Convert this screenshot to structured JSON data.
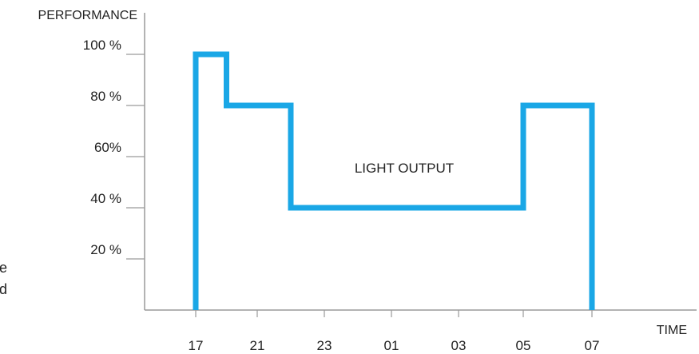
{
  "chart_data": {
    "type": "line",
    "ylabel": "PERFORMANCE",
    "xlabel": "TIME",
    "y_ticks": [
      {
        "value": 100,
        "label": "100 %"
      },
      {
        "value": 80,
        "label": "80 %"
      },
      {
        "value": 60,
        "label": "60%"
      },
      {
        "value": 40,
        "label": "40 %"
      },
      {
        "value": 20,
        "label": "20 %"
      }
    ],
    "x_ticks": [
      {
        "value": 17,
        "label": "17"
      },
      {
        "value": 21,
        "label": "21"
      },
      {
        "value": 23,
        "label": "23"
      },
      {
        "value": 25,
        "label": "01"
      },
      {
        "value": 27,
        "label": "03"
      },
      {
        "value": 29,
        "label": "05"
      },
      {
        "value": 31,
        "label": "07"
      }
    ],
    "ylim": [
      0,
      100
    ],
    "series": [
      {
        "name": "LIGHT OUTPUT",
        "color": "#1aa7e6",
        "step": true,
        "points": [
          {
            "x": 17,
            "y": 0
          },
          {
            "x": 17,
            "y": 100
          },
          {
            "x": 19,
            "y": 100
          },
          {
            "x": 19,
            "y": 80
          },
          {
            "x": 22,
            "y": 80
          },
          {
            "x": 22,
            "y": 40
          },
          {
            "x": 29,
            "y": 40
          },
          {
            "x": 29,
            "y": 80
          },
          {
            "x": 31,
            "y": 80
          },
          {
            "x": 31,
            "y": 0
          }
        ]
      }
    ],
    "annotation": "LIGHT OUTPUT",
    "cut_text": [
      "e",
      "d"
    ]
  }
}
